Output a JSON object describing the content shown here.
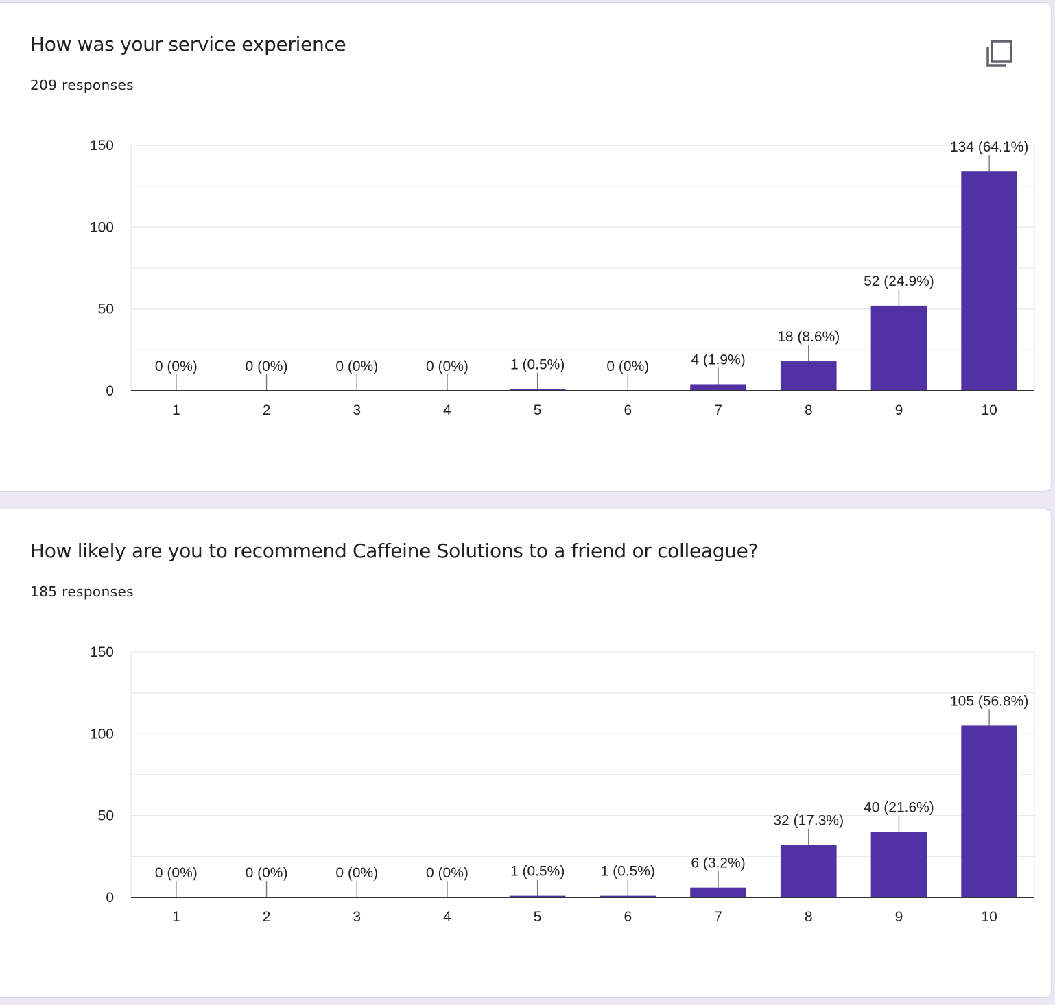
{
  "colors": {
    "bar": "#5032a4",
    "grid": "#e8e8e8",
    "axis": "#333333",
    "text": "#222222",
    "card_bg": "#ffffff",
    "page_bg": "#ebe7f3"
  },
  "questions": [
    {
      "title": "How was your service experience",
      "responses_label": "209 responses",
      "copy_icon": "copy-icon"
    },
    {
      "title": "How likely are you to recommend Caffeine Solutions to a friend or colleague?",
      "responses_label": "185 responses"
    }
  ],
  "chart_data": [
    {
      "type": "bar",
      "title": "How was your service experience",
      "categories": [
        "1",
        "2",
        "3",
        "4",
        "5",
        "6",
        "7",
        "8",
        "9",
        "10"
      ],
      "values": [
        0,
        0,
        0,
        0,
        1,
        0,
        4,
        18,
        52,
        134
      ],
      "labels": [
        "0 (0%)",
        "0 (0%)",
        "0 (0%)",
        "0 (0%)",
        "1 (0.5%)",
        "0 (0%)",
        "4 (1.9%)",
        "18 (8.6%)",
        "52 (24.9%)",
        "134 (64.1%)"
      ],
      "yticks": [
        "0",
        "50",
        "100",
        "150"
      ],
      "ylim": [
        0,
        150
      ],
      "xlabel": "",
      "ylabel": ""
    },
    {
      "type": "bar",
      "title": "How likely are you to recommend Caffeine Solutions to a friend or colleague?",
      "categories": [
        "1",
        "2",
        "3",
        "4",
        "5",
        "6",
        "7",
        "8",
        "9",
        "10"
      ],
      "values": [
        0,
        0,
        0,
        0,
        1,
        1,
        6,
        32,
        40,
        105
      ],
      "labels": [
        "0 (0%)",
        "0 (0%)",
        "0 (0%)",
        "0 (0%)",
        "1 (0.5%)",
        "1 (0.5%)",
        "6 (3.2%)",
        "32 (17.3%)",
        "40 (21.6%)",
        "105 (56.8%)"
      ],
      "yticks": [
        "0",
        "50",
        "100",
        "150"
      ],
      "ylim": [
        0,
        150
      ],
      "xlabel": "",
      "ylabel": ""
    }
  ]
}
